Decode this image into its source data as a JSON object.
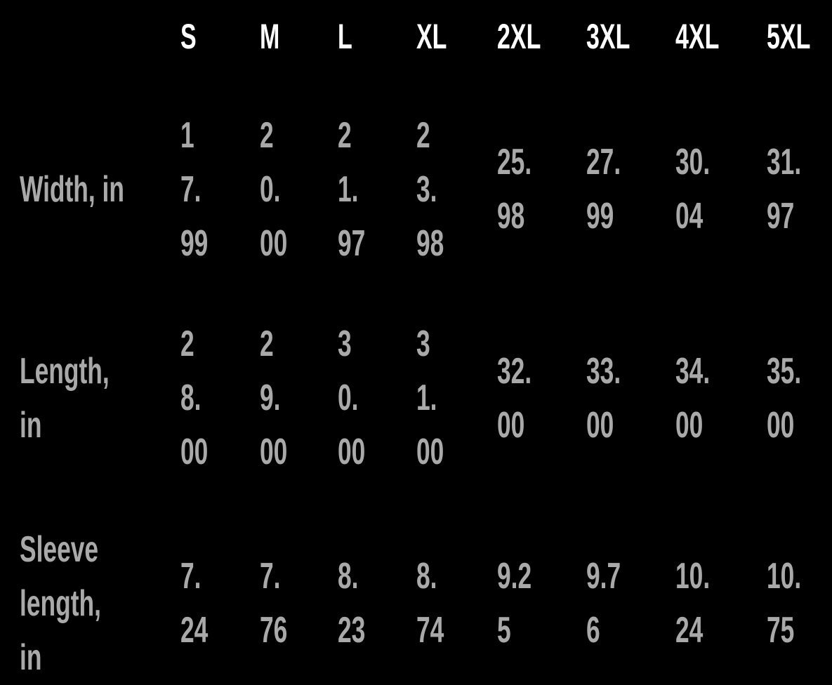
{
  "table": {
    "headers": [
      "S",
      "M",
      "L",
      "XL",
      "2XL",
      "3XL",
      "4XL",
      "5XL"
    ],
    "rows": [
      {
        "label": "Width, in",
        "values": [
          "17.99",
          "20.00",
          "21.97",
          "23.98",
          "25.98",
          "27.99",
          "30.04",
          "31.97"
        ]
      },
      {
        "label": "Length, in",
        "values": [
          "28.00",
          "29.00",
          "30.00",
          "31.00",
          "32.00",
          "33.00",
          "34.00",
          "35.00"
        ]
      },
      {
        "label": "Sleeve length, in",
        "values": [
          "7.24",
          "7.76",
          "8.23",
          "8.74",
          "9.25",
          "9.76",
          "10.24",
          "10.75"
        ]
      }
    ]
  },
  "colors": {
    "background": "#000000",
    "header": "#ffffff",
    "body": "#a9a9a9"
  }
}
